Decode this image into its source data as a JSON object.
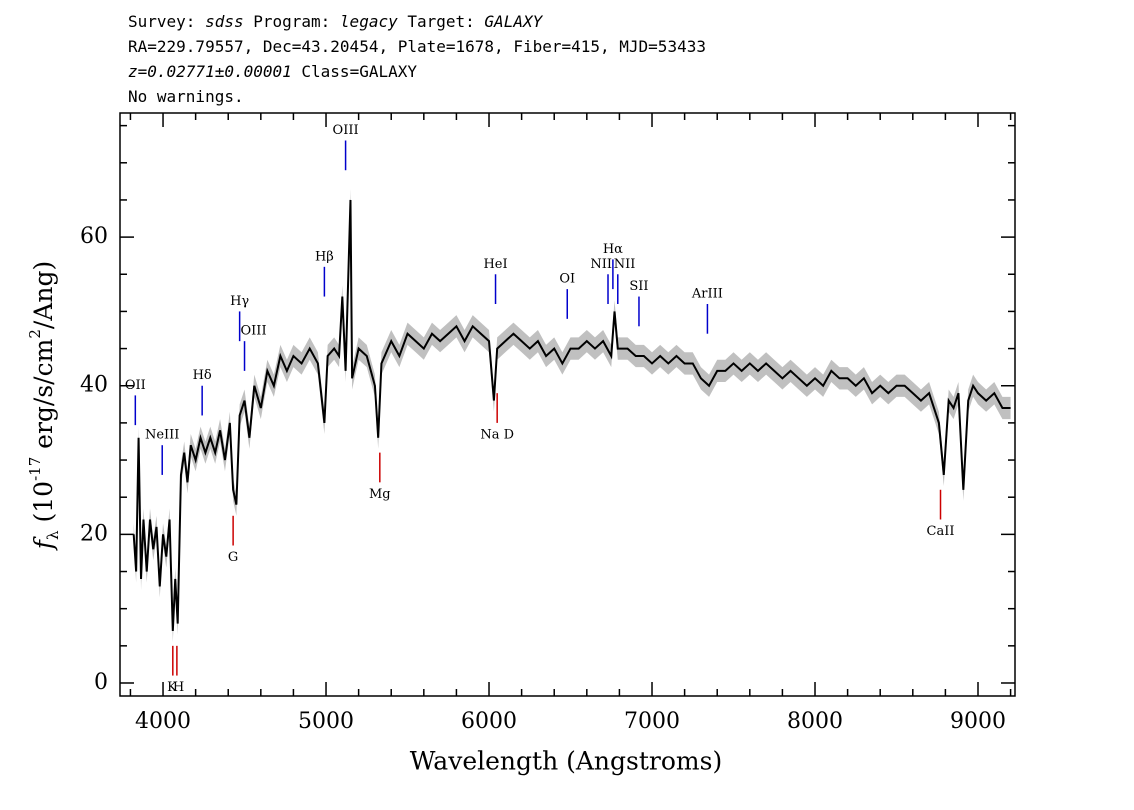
{
  "chart_data": {
    "type": "line",
    "title": [
      [
        {
          "text": "Survey: "
        },
        {
          "text": "sdss",
          "italic": true
        },
        {
          "text": " Program: "
        },
        {
          "text": "legacy",
          "italic": true
        },
        {
          "text": " Target: "
        },
        {
          "text": "GALAXY",
          "italic": true
        }
      ],
      [
        {
          "text": "RA=229.79557, Dec=43.20454, Plate=1678, Fiber=415, MJD=53433"
        }
      ],
      [
        {
          "text": "z=0.02771±0.00001",
          "italic": true
        },
        {
          "text": " Class=GALAXY"
        }
      ],
      [
        {
          "text": "No warnings."
        }
      ]
    ],
    "xlabel": "Wavelength (Angstroms)",
    "ylabel": [
      {
        "text": "f",
        "italic": true
      },
      {
        "text": "λ",
        "sub": true
      },
      {
        "text": " (10"
      },
      {
        "text": "-17",
        "sup": true
      },
      {
        "text": " erg/s/cm"
      },
      {
        "text": "2",
        "sup": true
      },
      {
        "text": "/Ang)"
      }
    ],
    "xlim": [
      3736,
      9227
    ],
    "ylim": [
      -1.75,
      76.7
    ],
    "xticks": [
      4000,
      5000,
      6000,
      7000,
      8000,
      9000
    ],
    "xminorticks": [
      3800,
      4200,
      4400,
      4600,
      4800,
      5200,
      5400,
      5600,
      5800,
      6200,
      6400,
      6600,
      6800,
      7200,
      7400,
      7600,
      7800,
      8200,
      8400,
      8600,
      8800,
      9200
    ],
    "yticks": [
      0,
      20,
      40,
      60
    ],
    "yminorticks": [
      5,
      10,
      15,
      25,
      30,
      35,
      45,
      50,
      55,
      65,
      70,
      75
    ],
    "error": 1.5,
    "error_color": "#c0c0c0",
    "series": [
      {
        "color": "#000000",
        "x": [
          3820,
          3835,
          3850,
          3865,
          3880,
          3900,
          3920,
          3940,
          3960,
          3980,
          4000,
          4020,
          4040,
          4060,
          4075,
          4090,
          4110,
          4130,
          4150,
          4170,
          4200,
          4230,
          4260,
          4290,
          4320,
          4350,
          4380,
          4410,
          4430,
          4450,
          4470,
          4500,
          4530,
          4560,
          4600,
          4640,
          4680,
          4720,
          4760,
          4800,
          4850,
          4900,
          4950,
          4990,
          5010,
          5050,
          5080,
          5100,
          5120,
          5150,
          5160,
          5200,
          5250,
          5300,
          5320,
          5340,
          5400,
          5450,
          5500,
          5550,
          5600,
          5650,
          5700,
          5750,
          5800,
          5850,
          5900,
          5950,
          6000,
          6030,
          6050,
          6100,
          6150,
          6200,
          6250,
          6300,
          6350,
          6400,
          6450,
          6500,
          6550,
          6600,
          6650,
          6700,
          6750,
          6770,
          6790,
          6850,
          6900,
          6950,
          7000,
          7050,
          7100,
          7150,
          7200,
          7250,
          7300,
          7350,
          7400,
          7450,
          7500,
          7550,
          7600,
          7650,
          7700,
          7750,
          7800,
          7850,
          7900,
          7950,
          8000,
          8050,
          8100,
          8150,
          8200,
          8250,
          8300,
          8350,
          8400,
          8450,
          8500,
          8550,
          8600,
          8650,
          8700,
          8730,
          8760,
          8790,
          8820,
          8850,
          8880,
          8910,
          8940,
          8970,
          9000,
          9050,
          9100,
          9150,
          9200
        ],
        "values": [
          20,
          15,
          33,
          14,
          22,
          15,
          22,
          18,
          21,
          13,
          20,
          17,
          22,
          7,
          14,
          8,
          28,
          31,
          27,
          32,
          30,
          33,
          31,
          33,
          31,
          34,
          30,
          35,
          26,
          24,
          36,
          38,
          33,
          40,
          37,
          42,
          40,
          44,
          42,
          44,
          43,
          45,
          43,
          35,
          44,
          45,
          44,
          52,
          42,
          65,
          41,
          45,
          44,
          40,
          33,
          43,
          46,
          44,
          47,
          46,
          45,
          47,
          46,
          47,
          48,
          46,
          48,
          47,
          46,
          38,
          45,
          46,
          47,
          46,
          45,
          46,
          44,
          45,
          43,
          45,
          45,
          46,
          45,
          46,
          44,
          50,
          45,
          45,
          44,
          44,
          43,
          44,
          43,
          44,
          43,
          43,
          41,
          40,
          42,
          42,
          43,
          42,
          43,
          42,
          43,
          42,
          41,
          42,
          41,
          40,
          41,
          40,
          42,
          41,
          41,
          40,
          41,
          39,
          40,
          39,
          40,
          40,
          39,
          38,
          39,
          37,
          35,
          28,
          38,
          37,
          39,
          26,
          38,
          40,
          39,
          38,
          39,
          37,
          37
        ]
      }
    ],
    "annotations": [
      {
        "text": "OII",
        "x": 3830,
        "y": 36.7,
        "color": "#0000cc",
        "place": "above"
      },
      {
        "text": "NeIII",
        "x": 3995,
        "y": 30,
        "color": "#0000cc",
        "place": "above"
      },
      {
        "text": "Hδ",
        "x": 4240,
        "y": 38,
        "color": "#0000cc",
        "place": "above"
      },
      {
        "text": "Hγ",
        "x": 4470,
        "y": 48,
        "color": "#0000cc",
        "place": "above"
      },
      {
        "text": "OIII",
        "x": 4500,
        "y": 44,
        "color": "#0000cc",
        "place": "above",
        "anchor": "start"
      },
      {
        "text": "Hβ",
        "x": 4990,
        "y": 54,
        "color": "#0000cc",
        "place": "above"
      },
      {
        "text": "OIII",
        "x": 5120,
        "y": 71,
        "color": "#0000cc",
        "place": "above"
      },
      {
        "text": "HeI",
        "x": 6040,
        "y": 53,
        "color": "#0000cc",
        "place": "above"
      },
      {
        "text": "OI",
        "x": 6480,
        "y": 51,
        "color": "#0000cc",
        "place": "above"
      },
      {
        "text": "NII",
        "x": 6730,
        "y": 53,
        "color": "#0000cc",
        "place": "above",
        "anchor": "end"
      },
      {
        "text": "Hα",
        "x": 6760,
        "y": 55,
        "color": "#0000cc",
        "place": "above"
      },
      {
        "text": "NII",
        "x": 6790,
        "y": 53,
        "color": "#0000cc",
        "place": "above",
        "anchor": "start"
      },
      {
        "text": "SII",
        "x": 6920,
        "y": 50,
        "color": "#0000cc",
        "place": "above"
      },
      {
        "text": "ArIII",
        "x": 7340,
        "y": 49,
        "color": "#0000cc",
        "place": "above"
      },
      {
        "text": "K",
        "x": 4060,
        "y": 3,
        "color": "#cc0000",
        "place": "below",
        "anchor": "end"
      },
      {
        "text": "H",
        "x": 4085,
        "y": 3,
        "color": "#cc0000",
        "place": "below",
        "anchor": "start"
      },
      {
        "text": "G",
        "x": 4430,
        "y": 20.5,
        "color": "#cc0000",
        "place": "below"
      },
      {
        "text": "Mg",
        "x": 5330,
        "y": 29,
        "color": "#cc0000",
        "place": "below"
      },
      {
        "text": "Na  D",
        "x": 6050,
        "y": 37,
        "color": "#cc0000",
        "place": "below"
      },
      {
        "text": "CaII",
        "x": 8770,
        "y": 24,
        "color": "#cc0000",
        "place": "below"
      }
    ]
  }
}
